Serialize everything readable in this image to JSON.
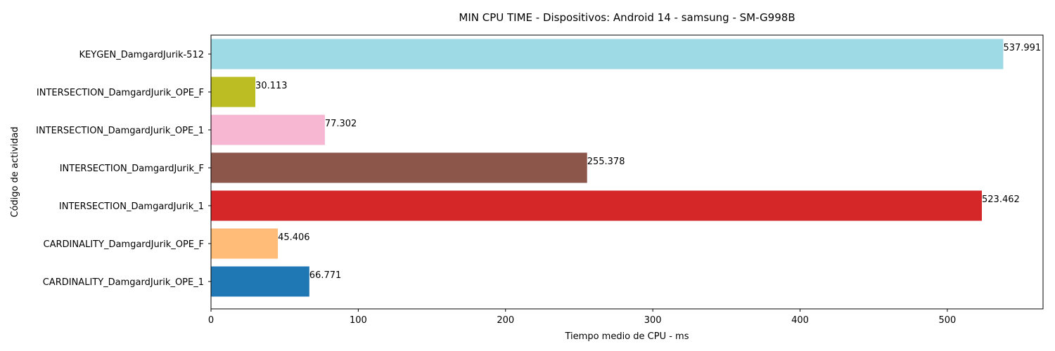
{
  "chart_data": {
    "type": "bar",
    "orientation": "horizontal",
    "title": "MIN CPU TIME - Dispositivos: Android 14 - samsung - SM-G998B",
    "xlabel": "Tiempo medio de CPU - ms",
    "ylabel": "Código de actividad",
    "xlim": [
      0,
      565
    ],
    "xticks": [
      0,
      100,
      200,
      300,
      400,
      500
    ],
    "xtick_labels": [
      "0",
      "100",
      "200",
      "300",
      "400",
      "500"
    ],
    "grid": false,
    "categories": [
      "CARDINALITY_DamgardJurik_OPE_1",
      "CARDINALITY_DamgardJurik_OPE_F",
      "INTERSECTION_DamgardJurik_1",
      "INTERSECTION_DamgardJurik_F",
      "INTERSECTION_DamgardJurik_OPE_1",
      "INTERSECTION_DamgardJurik_OPE_F",
      "KEYGEN_DamgardJurik-512"
    ],
    "values": [
      66.771,
      45.406,
      523.462,
      255.378,
      77.302,
      30.113,
      537.991
    ],
    "value_labels": [
      "66.771",
      "45.406",
      "523.462",
      "255.378",
      "77.302",
      "30.113",
      "537.991"
    ],
    "colors": [
      "#1f77b4",
      "#ffbb78",
      "#d62728",
      "#8c564b",
      "#f7b6d2",
      "#bcbd22",
      "#9edae5"
    ]
  }
}
